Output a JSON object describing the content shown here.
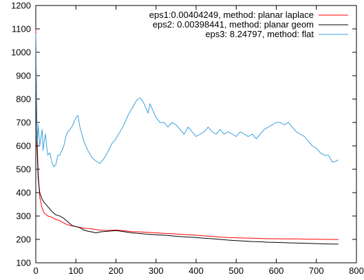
{
  "chart_data": {
    "type": "line",
    "xlim": [
      0,
      800
    ],
    "ylim": [
      100,
      1200
    ],
    "x_ticks": [
      "0",
      "100",
      "200",
      "300",
      "400",
      "500",
      "600",
      "700",
      "800"
    ],
    "y_ticks": [
      "100",
      "200",
      "300",
      "400",
      "500",
      "600",
      "700",
      "800",
      "900",
      "1000",
      "1100",
      "1200"
    ],
    "grid": false,
    "legend_position": "top-right",
    "series": [
      {
        "name": "eps1:0.00404249, method: planar laplace",
        "color": "#ff0000",
        "points": [
          [
            0,
            1100
          ],
          [
            3,
            650
          ],
          [
            6,
            480
          ],
          [
            10,
            380
          ],
          [
            15,
            340
          ],
          [
            20,
            315
          ],
          [
            30,
            300
          ],
          [
            40,
            295
          ],
          [
            50,
            285
          ],
          [
            60,
            280
          ],
          [
            70,
            270
          ],
          [
            80,
            262
          ],
          [
            90,
            258
          ],
          [
            100,
            255
          ],
          [
            120,
            248
          ],
          [
            140,
            245
          ],
          [
            160,
            240
          ],
          [
            180,
            238
          ],
          [
            200,
            240
          ],
          [
            220,
            237
          ],
          [
            240,
            233
          ],
          [
            260,
            232
          ],
          [
            280,
            230
          ],
          [
            300,
            228
          ],
          [
            320,
            226
          ],
          [
            340,
            224
          ],
          [
            360,
            222
          ],
          [
            380,
            220
          ],
          [
            400,
            218
          ],
          [
            420,
            215
          ],
          [
            440,
            213
          ],
          [
            460,
            210
          ],
          [
            480,
            208
          ],
          [
            500,
            207
          ],
          [
            520,
            206
          ],
          [
            540,
            205
          ],
          [
            560,
            204
          ],
          [
            580,
            203
          ],
          [
            600,
            203
          ],
          [
            620,
            202
          ],
          [
            640,
            202
          ],
          [
            660,
            202
          ],
          [
            680,
            201
          ],
          [
            700,
            201
          ],
          [
            720,
            200
          ],
          [
            740,
            200
          ],
          [
            755,
            199
          ]
        ]
      },
      {
        "name": "eps2: 0.00398441, method: planar geom",
        "color": "#000000",
        "points": [
          [
            0,
            1050
          ],
          [
            3,
            600
          ],
          [
            6,
            460
          ],
          [
            10,
            400
          ],
          [
            15,
            375
          ],
          [
            20,
            360
          ],
          [
            30,
            340
          ],
          [
            40,
            320
          ],
          [
            50,
            305
          ],
          [
            60,
            300
          ],
          [
            70,
            290
          ],
          [
            80,
            275
          ],
          [
            90,
            260
          ],
          [
            100,
            255
          ],
          [
            110,
            250
          ],
          [
            120,
            240
          ],
          [
            130,
            235
          ],
          [
            140,
            232
          ],
          [
            150,
            228
          ],
          [
            160,
            232
          ],
          [
            180,
            235
          ],
          [
            200,
            238
          ],
          [
            220,
            233
          ],
          [
            240,
            228
          ],
          [
            260,
            225
          ],
          [
            280,
            222
          ],
          [
            300,
            220
          ],
          [
            320,
            218
          ],
          [
            340,
            215
          ],
          [
            360,
            212
          ],
          [
            380,
            210
          ],
          [
            400,
            208
          ],
          [
            420,
            205
          ],
          [
            440,
            203
          ],
          [
            460,
            200
          ],
          [
            480,
            197
          ],
          [
            500,
            195
          ],
          [
            520,
            193
          ],
          [
            540,
            191
          ],
          [
            560,
            190
          ],
          [
            580,
            188
          ],
          [
            600,
            187
          ],
          [
            620,
            186
          ],
          [
            640,
            185
          ],
          [
            660,
            184
          ],
          [
            680,
            183
          ],
          [
            700,
            182
          ],
          [
            720,
            181
          ],
          [
            740,
            180
          ],
          [
            755,
            180
          ]
        ]
      },
      {
        "name": "eps3: 8.24797, method: flat",
        "color": "#3ba0dc",
        "points": [
          [
            0,
            1080
          ],
          [
            2,
            700
          ],
          [
            4,
            620
          ],
          [
            6,
            690
          ],
          [
            8,
            640
          ],
          [
            10,
            600
          ],
          [
            13,
            640
          ],
          [
            16,
            670
          ],
          [
            18,
            580
          ],
          [
            21,
            620
          ],
          [
            24,
            650
          ],
          [
            27,
            600
          ],
          [
            30,
            560
          ],
          [
            35,
            570
          ],
          [
            40,
            530
          ],
          [
            45,
            510
          ],
          [
            50,
            520
          ],
          [
            55,
            560
          ],
          [
            60,
            560
          ],
          [
            65,
            580
          ],
          [
            70,
            600
          ],
          [
            75,
            640
          ],
          [
            80,
            660
          ],
          [
            90,
            680
          ],
          [
            95,
            700
          ],
          [
            100,
            720
          ],
          [
            105,
            730
          ],
          [
            110,
            680
          ],
          [
            115,
            650
          ],
          [
            120,
            620
          ],
          [
            125,
            600
          ],
          [
            130,
            580
          ],
          [
            140,
            550
          ],
          [
            150,
            535
          ],
          [
            160,
            525
          ],
          [
            170,
            545
          ],
          [
            180,
            575
          ],
          [
            190,
            610
          ],
          [
            200,
            630
          ],
          [
            210,
            660
          ],
          [
            220,
            690
          ],
          [
            230,
            730
          ],
          [
            240,
            760
          ],
          [
            250,
            790
          ],
          [
            255,
            800
          ],
          [
            260,
            805
          ],
          [
            265,
            795
          ],
          [
            270,
            780
          ],
          [
            275,
            760
          ],
          [
            280,
            740
          ],
          [
            285,
            780
          ],
          [
            290,
            760
          ],
          [
            300,
            720
          ],
          [
            310,
            700
          ],
          [
            320,
            700
          ],
          [
            330,
            680
          ],
          [
            340,
            700
          ],
          [
            350,
            690
          ],
          [
            360,
            670
          ],
          [
            370,
            650
          ],
          [
            380,
            680
          ],
          [
            390,
            660
          ],
          [
            400,
            640
          ],
          [
            410,
            650
          ],
          [
            420,
            660
          ],
          [
            430,
            680
          ],
          [
            440,
            660
          ],
          [
            450,
            650
          ],
          [
            460,
            670
          ],
          [
            470,
            650
          ],
          [
            480,
            660
          ],
          [
            490,
            650
          ],
          [
            500,
            640
          ],
          [
            510,
            660
          ],
          [
            520,
            650
          ],
          [
            530,
            640
          ],
          [
            540,
            650
          ],
          [
            550,
            630
          ],
          [
            560,
            650
          ],
          [
            570,
            670
          ],
          [
            580,
            680
          ],
          [
            590,
            690
          ],
          [
            600,
            700
          ],
          [
            610,
            700
          ],
          [
            620,
            690
          ],
          [
            630,
            700
          ],
          [
            640,
            680
          ],
          [
            650,
            660
          ],
          [
            660,
            650
          ],
          [
            670,
            640
          ],
          [
            680,
            620
          ],
          [
            690,
            600
          ],
          [
            700,
            590
          ],
          [
            710,
            570
          ],
          [
            720,
            560
          ],
          [
            730,
            560
          ],
          [
            740,
            530
          ],
          [
            750,
            535
          ],
          [
            755,
            540
          ]
        ]
      }
    ]
  }
}
